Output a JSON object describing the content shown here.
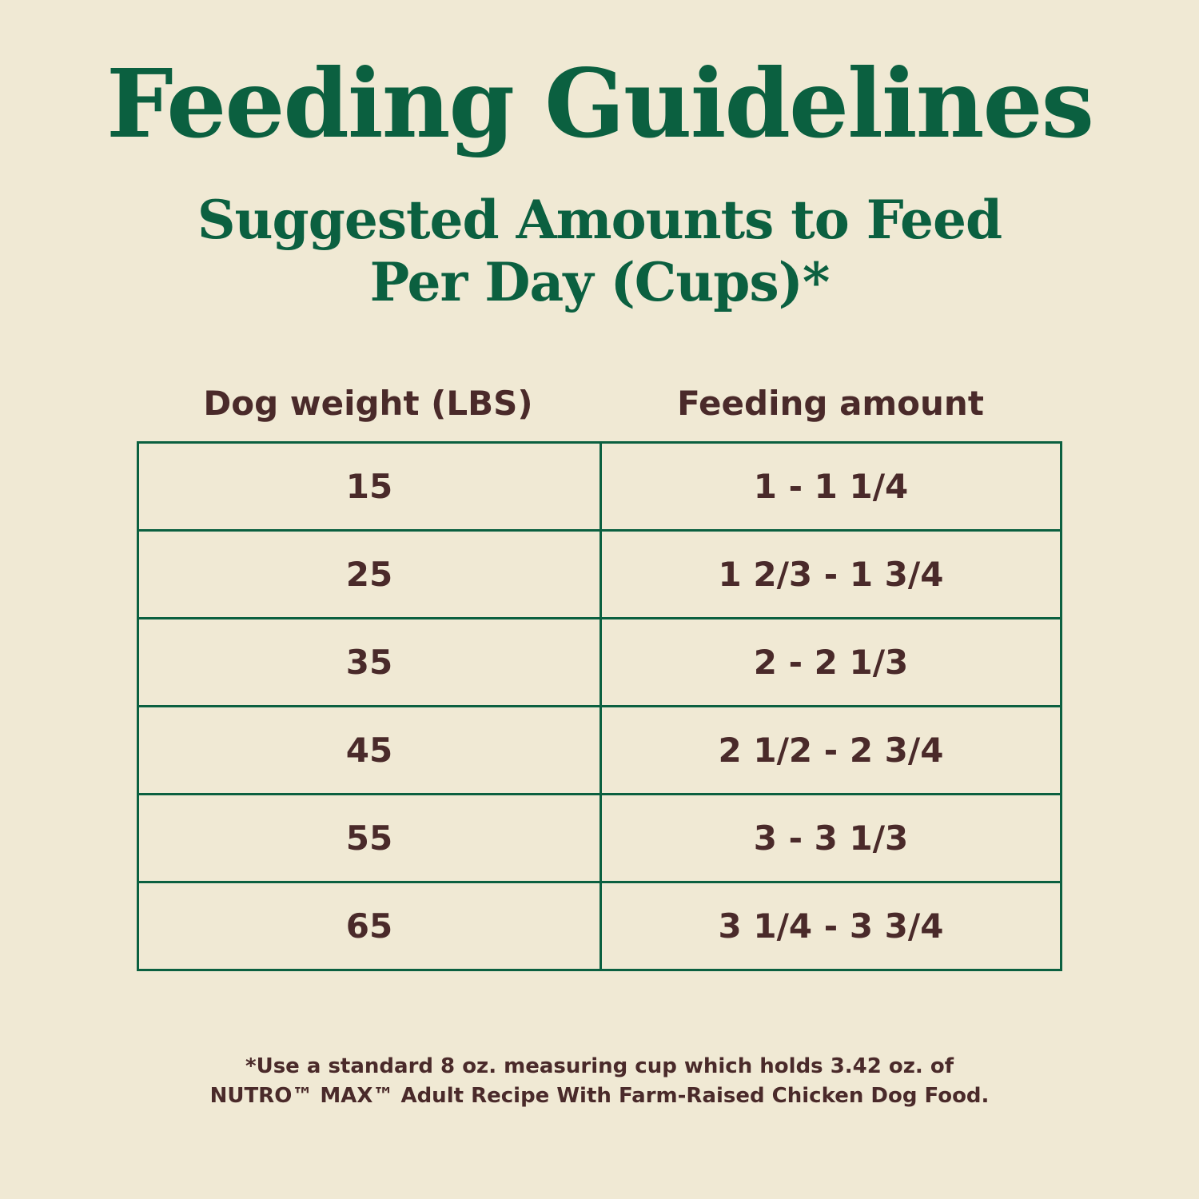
{
  "title": "Feeding Guidelines",
  "subtitle": {
    "line1": "Suggested Amounts to Feed",
    "line2": "Per Day (Cups)*"
  },
  "table": {
    "headers": [
      "Dog weight (LBS)",
      "Feeding amount"
    ],
    "rows": [
      {
        "weight": "15",
        "amount": "1 - 1 1/4"
      },
      {
        "weight": "25",
        "amount": "1 2/3 - 1 3/4"
      },
      {
        "weight": "35",
        "amount": "2 - 2 1/3"
      },
      {
        "weight": "45",
        "amount": "2 1/2 - 2 3/4"
      },
      {
        "weight": "55",
        "amount": "3 - 3 1/3"
      },
      {
        "weight": "65",
        "amount": "3 1/4 - 3 3/4"
      }
    ]
  },
  "footnote": {
    "line1": "*Use a standard 8 oz. measuring cup which holds 3.42 oz. of",
    "line2": "NUTRO™ MAX™ Adult Recipe With Farm-Raised Chicken Dog Food."
  },
  "colors": {
    "background": "#f0e9d4",
    "green": "#0b6040",
    "text": "#4a2a2a"
  }
}
